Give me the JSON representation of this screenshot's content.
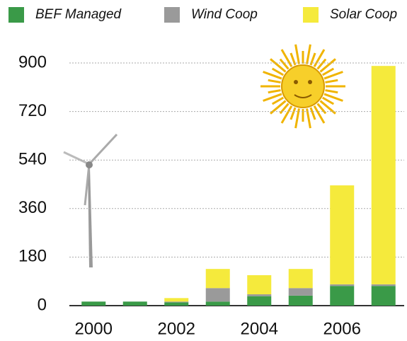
{
  "chart_data": {
    "type": "stacked_bar",
    "categories": [
      "2000",
      null,
      "2002",
      null,
      "2004",
      null,
      "2006",
      null
    ],
    "series": [
      {
        "name": "BEF Managed",
        "color": "#3a9a48",
        "values": [
          15,
          15,
          12,
          15,
          35,
          37,
          73,
          73
        ]
      },
      {
        "name": "Wind Coop",
        "color": "#9a9a9a",
        "values": [
          0,
          0,
          3,
          50,
          7,
          28,
          6,
          6
        ]
      },
      {
        "name": "Solar Coop",
        "color": "#f5ea3c",
        "values": [
          0,
          0,
          13,
          71,
          71,
          71,
          367,
          810
        ]
      }
    ],
    "ylim": [
      0,
      900
    ],
    "yticks": [
      0,
      180,
      360,
      540,
      720,
      900
    ],
    "grid": true
  }
}
